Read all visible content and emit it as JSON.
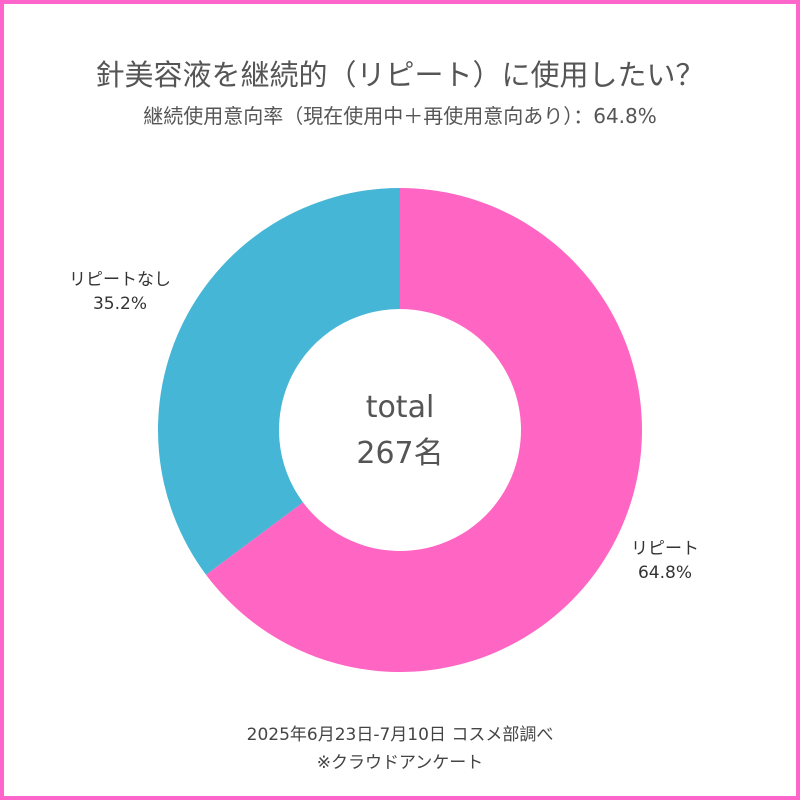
{
  "colors": {
    "border": "#ff66cc",
    "repeat": "#ff66c4",
    "no_repeat": "#45b6d6"
  },
  "chart_data": {
    "type": "pie",
    "variant": "donut",
    "title": "針美容液を継続的（リピート）に使用したい？",
    "subtitle": "継続使用意向率（現在使用中＋再使用意向あり）：64.8%",
    "center_label": [
      "total",
      "267名"
    ],
    "slices": [
      {
        "name": "リピート",
        "value": 64.8,
        "label": "64.8%",
        "color": "#ff66c4"
      },
      {
        "name": "リピートなし",
        "value": 35.2,
        "label": "35.2%",
        "color": "#45b6d6"
      }
    ],
    "start_angle": "12 o'clock",
    "direction": "clockwise"
  },
  "footer": {
    "source": "2025年6月23日-7月10日 コスメ部調べ",
    "note": "※クラウドアンケート"
  }
}
